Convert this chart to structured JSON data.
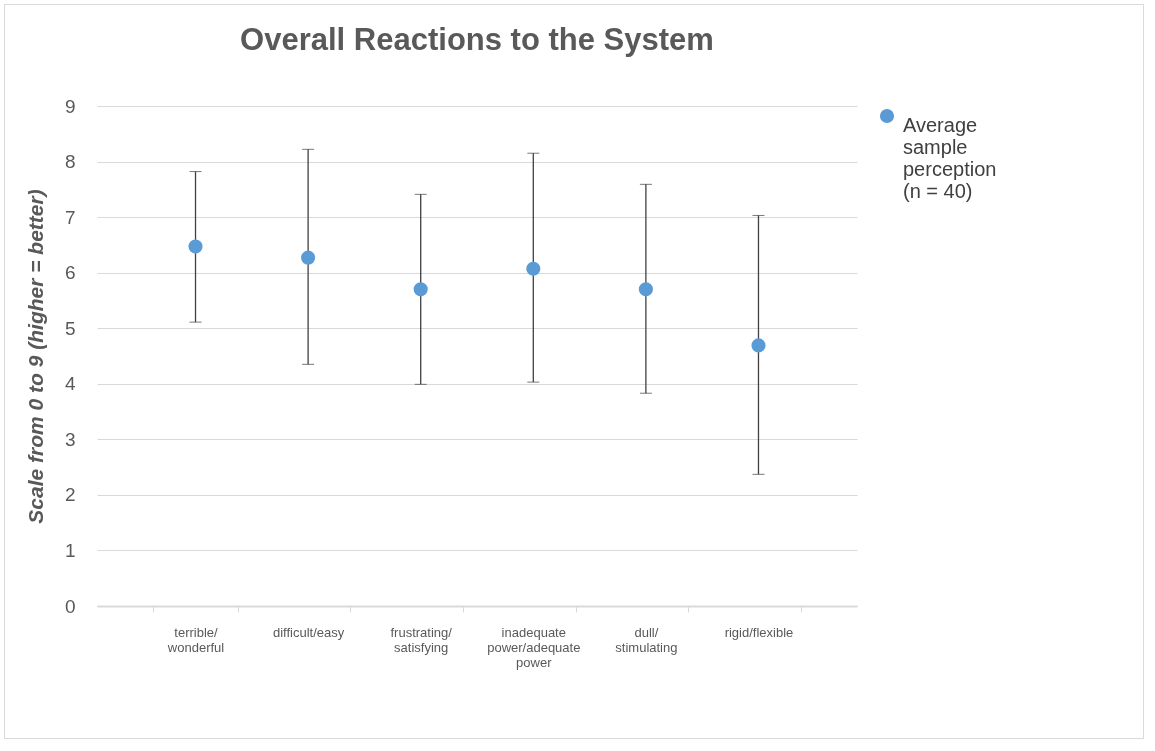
{
  "chart_data": {
    "type": "scatter",
    "title": "Overall Reactions to the System",
    "ylabel": "Scale from 0 to 9 (higher = better)",
    "categories": [
      "terrible/wonderful",
      "difficult/easy",
      "frustrating/satisfying",
      "inadequate power/adequate power",
      "dull/stimulating",
      "rigid/flexible"
    ],
    "series": [
      {
        "name": "Average sample perception (n = 40)",
        "color": "#5b9bd5",
        "values": [
          6.47,
          6.27,
          5.7,
          6.07,
          5.7,
          4.69
        ],
        "errors": [
          [
            5.11,
            7.82
          ],
          [
            4.35,
            8.22
          ],
          [
            3.99,
            7.41
          ],
          [
            4.03,
            8.15
          ],
          [
            3.83,
            7.59
          ],
          [
            2.37,
            7.03
          ]
        ]
      }
    ],
    "ylim": [
      0,
      9
    ],
    "yticks": [
      0,
      1,
      2,
      3,
      4,
      5,
      6,
      7,
      8,
      9
    ],
    "grid": "y",
    "legend": "right",
    "marker": "circle"
  }
}
